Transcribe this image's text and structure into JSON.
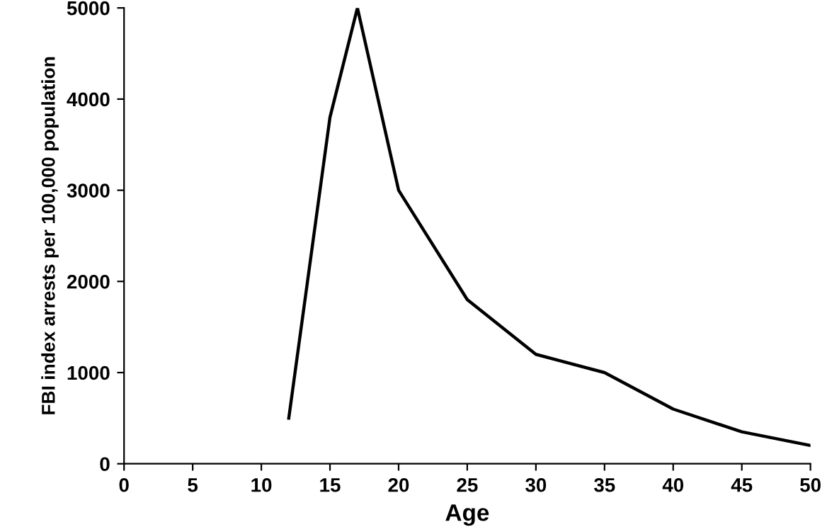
{
  "chart_data": {
    "type": "line",
    "xlabel": "Age",
    "ylabel": "FBI index arrests per 100,000 population",
    "x": [
      12,
      15,
      17,
      20,
      25,
      30,
      35,
      40,
      45,
      50
    ],
    "series": [
      {
        "color": "#000000",
        "values": [
          500,
          3800,
          5000,
          3000,
          1800,
          1200,
          1000,
          600,
          350,
          200
        ]
      }
    ],
    "xlim": [
      0,
      50
    ],
    "ylim": [
      0,
      5000
    ],
    "xticks": [
      0,
      5,
      10,
      15,
      20,
      25,
      30,
      35,
      40,
      45,
      50
    ],
    "yticks": [
      0,
      1000,
      2000,
      3000,
      4000,
      5000
    ],
    "grid": false,
    "legend": false,
    "marker": "none",
    "line_style": "solid"
  }
}
